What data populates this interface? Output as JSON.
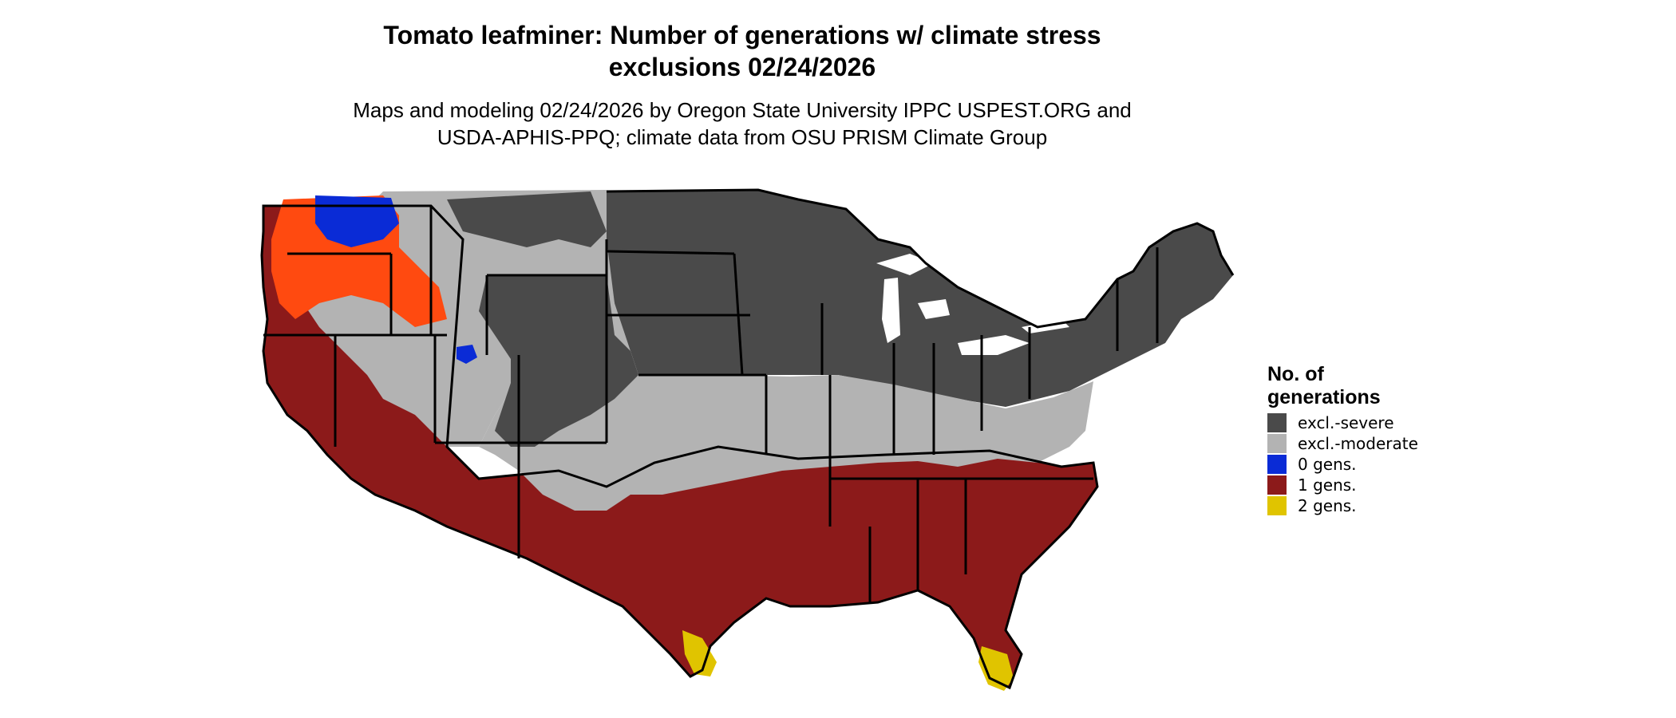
{
  "title": {
    "line1": "Tomato leafminer: Number of generations w/ climate stress",
    "line2": "exclusions 02/24/2026"
  },
  "subtitle": {
    "line1": "Maps and modeling 02/24/2026 by Oregon State University IPPC USPEST.ORG and",
    "line2": "USDA-APHIS-PPQ; climate data from OSU PRISM Climate Group"
  },
  "legend": {
    "title_line1": "No. of",
    "title_line2": "generations",
    "items": [
      {
        "label": "excl.-severe",
        "color": "#4a4a4a"
      },
      {
        "label": "excl.-moderate",
        "color": "#b3b3b3"
      },
      {
        "label": "0 gens.",
        "color": "#0a2bd6"
      },
      {
        "label": "1 gens.",
        "color": "#8c1a1a"
      },
      {
        "label": "2 gens.",
        "color": "#e0c400"
      }
    ]
  },
  "map_colors": {
    "severe": "#4a4a4a",
    "moderate": "#b3b3b3",
    "zero": "#0a2bd6",
    "one": "#8c1a1a",
    "one_high": "#ff4a10",
    "two": "#e0c400",
    "borders": "#000000"
  }
}
